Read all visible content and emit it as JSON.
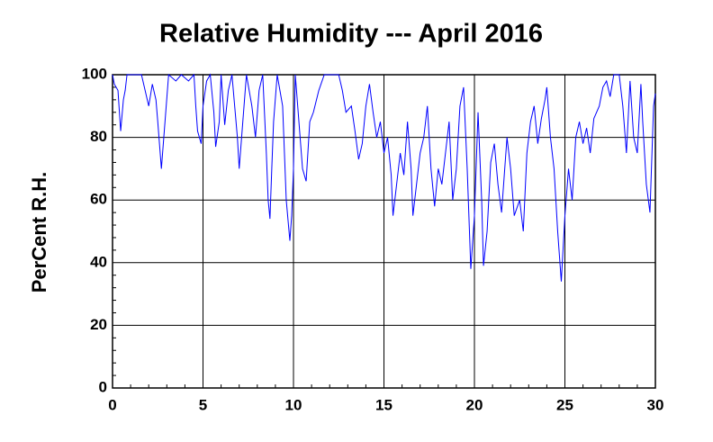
{
  "chart_data": {
    "type": "line",
    "title": "Relative Humidity --- April 2016",
    "y_label": "PerCent R.H.",
    "x": [
      0,
      0.1,
      0.3,
      0.45,
      0.6,
      0.7,
      0.8,
      1.2,
      1.6,
      2.0,
      2.2,
      2.4,
      2.5,
      2.7,
      2.9,
      3.1,
      3.5,
      3.8,
      4.2,
      4.5,
      4.6,
      4.7,
      4.9,
      5.0,
      5.2,
      5.4,
      5.6,
      5.7,
      5.9,
      6.0,
      6.2,
      6.4,
      6.6,
      6.9,
      7.0,
      7.2,
      7.4,
      7.7,
      7.9,
      8.1,
      8.3,
      8.5,
      8.6,
      8.7,
      8.8,
      8.9,
      9.1,
      9.4,
      9.6,
      9.8,
      9.9,
      10.0,
      10.1,
      10.3,
      10.5,
      10.7,
      10.9,
      11.1,
      11.4,
      11.7,
      12.0,
      12.5,
      12.7,
      12.9,
      13.2,
      13.4,
      13.6,
      13.8,
      14.0,
      14.2,
      14.4,
      14.6,
      14.8,
      15.0,
      15.2,
      15.4,
      15.5,
      15.7,
      15.9,
      16.1,
      16.3,
      16.5,
      16.6,
      16.8,
      17.0,
      17.2,
      17.4,
      17.6,
      17.8,
      18.0,
      18.2,
      18.4,
      18.6,
      18.8,
      19.0,
      19.2,
      19.4,
      19.6,
      19.8,
      20.0,
      20.2,
      20.4,
      20.5,
      20.7,
      20.9,
      21.1,
      21.3,
      21.5,
      21.8,
      22.0,
      22.2,
      22.5,
      22.7,
      22.9,
      23.1,
      23.3,
      23.5,
      23.7,
      23.9,
      24.0,
      24.2,
      24.4,
      24.6,
      24.8,
      25.0,
      25.2,
      25.4,
      25.6,
      25.8,
      26.0,
      26.2,
      26.4,
      26.6,
      26.9,
      27.1,
      27.3,
      27.5,
      27.7,
      28.0,
      28.2,
      28.4,
      28.6,
      28.8,
      29.0,
      29.2,
      29.3,
      29.5,
      29.7,
      29.9,
      30.0
    ],
    "values": [
      100,
      97,
      95,
      82,
      92,
      95,
      100,
      100,
      100,
      90,
      97,
      92,
      85,
      70,
      85,
      100,
      98,
      100,
      98,
      100,
      90,
      82,
      78,
      90,
      98,
      100,
      88,
      77,
      85,
      100,
      84,
      95,
      100,
      80,
      70,
      85,
      100,
      90,
      80,
      95,
      100,
      75,
      60,
      54,
      70,
      85,
      100,
      90,
      60,
      47,
      55,
      70,
      100,
      85,
      70,
      66,
      85,
      88,
      95,
      100,
      100,
      100,
      95,
      88,
      90,
      82,
      73,
      78,
      90,
      97,
      88,
      80,
      85,
      75,
      80,
      68,
      55,
      65,
      75,
      68,
      85,
      70,
      55,
      65,
      75,
      80,
      90,
      70,
      58,
      70,
      65,
      75,
      85,
      60,
      70,
      90,
      96,
      70,
      38,
      55,
      88,
      60,
      39,
      50,
      72,
      78,
      65,
      56,
      80,
      70,
      55,
      60,
      50,
      75,
      85,
      90,
      78,
      86,
      92,
      96,
      80,
      70,
      50,
      34,
      55,
      70,
      60,
      80,
      85,
      78,
      83,
      75,
      86,
      90,
      96,
      98,
      93,
      100,
      100,
      90,
      75,
      98,
      80,
      75,
      97,
      85,
      65,
      56,
      90,
      94
    ],
    "color": "#0000ff",
    "xlim": [
      0,
      30
    ],
    "xticks": [
      0,
      5,
      10,
      15,
      20,
      25,
      30
    ],
    "ylim": [
      0,
      100
    ],
    "yticks": [
      0,
      20,
      40,
      60,
      80,
      100
    ],
    "grid": true
  }
}
